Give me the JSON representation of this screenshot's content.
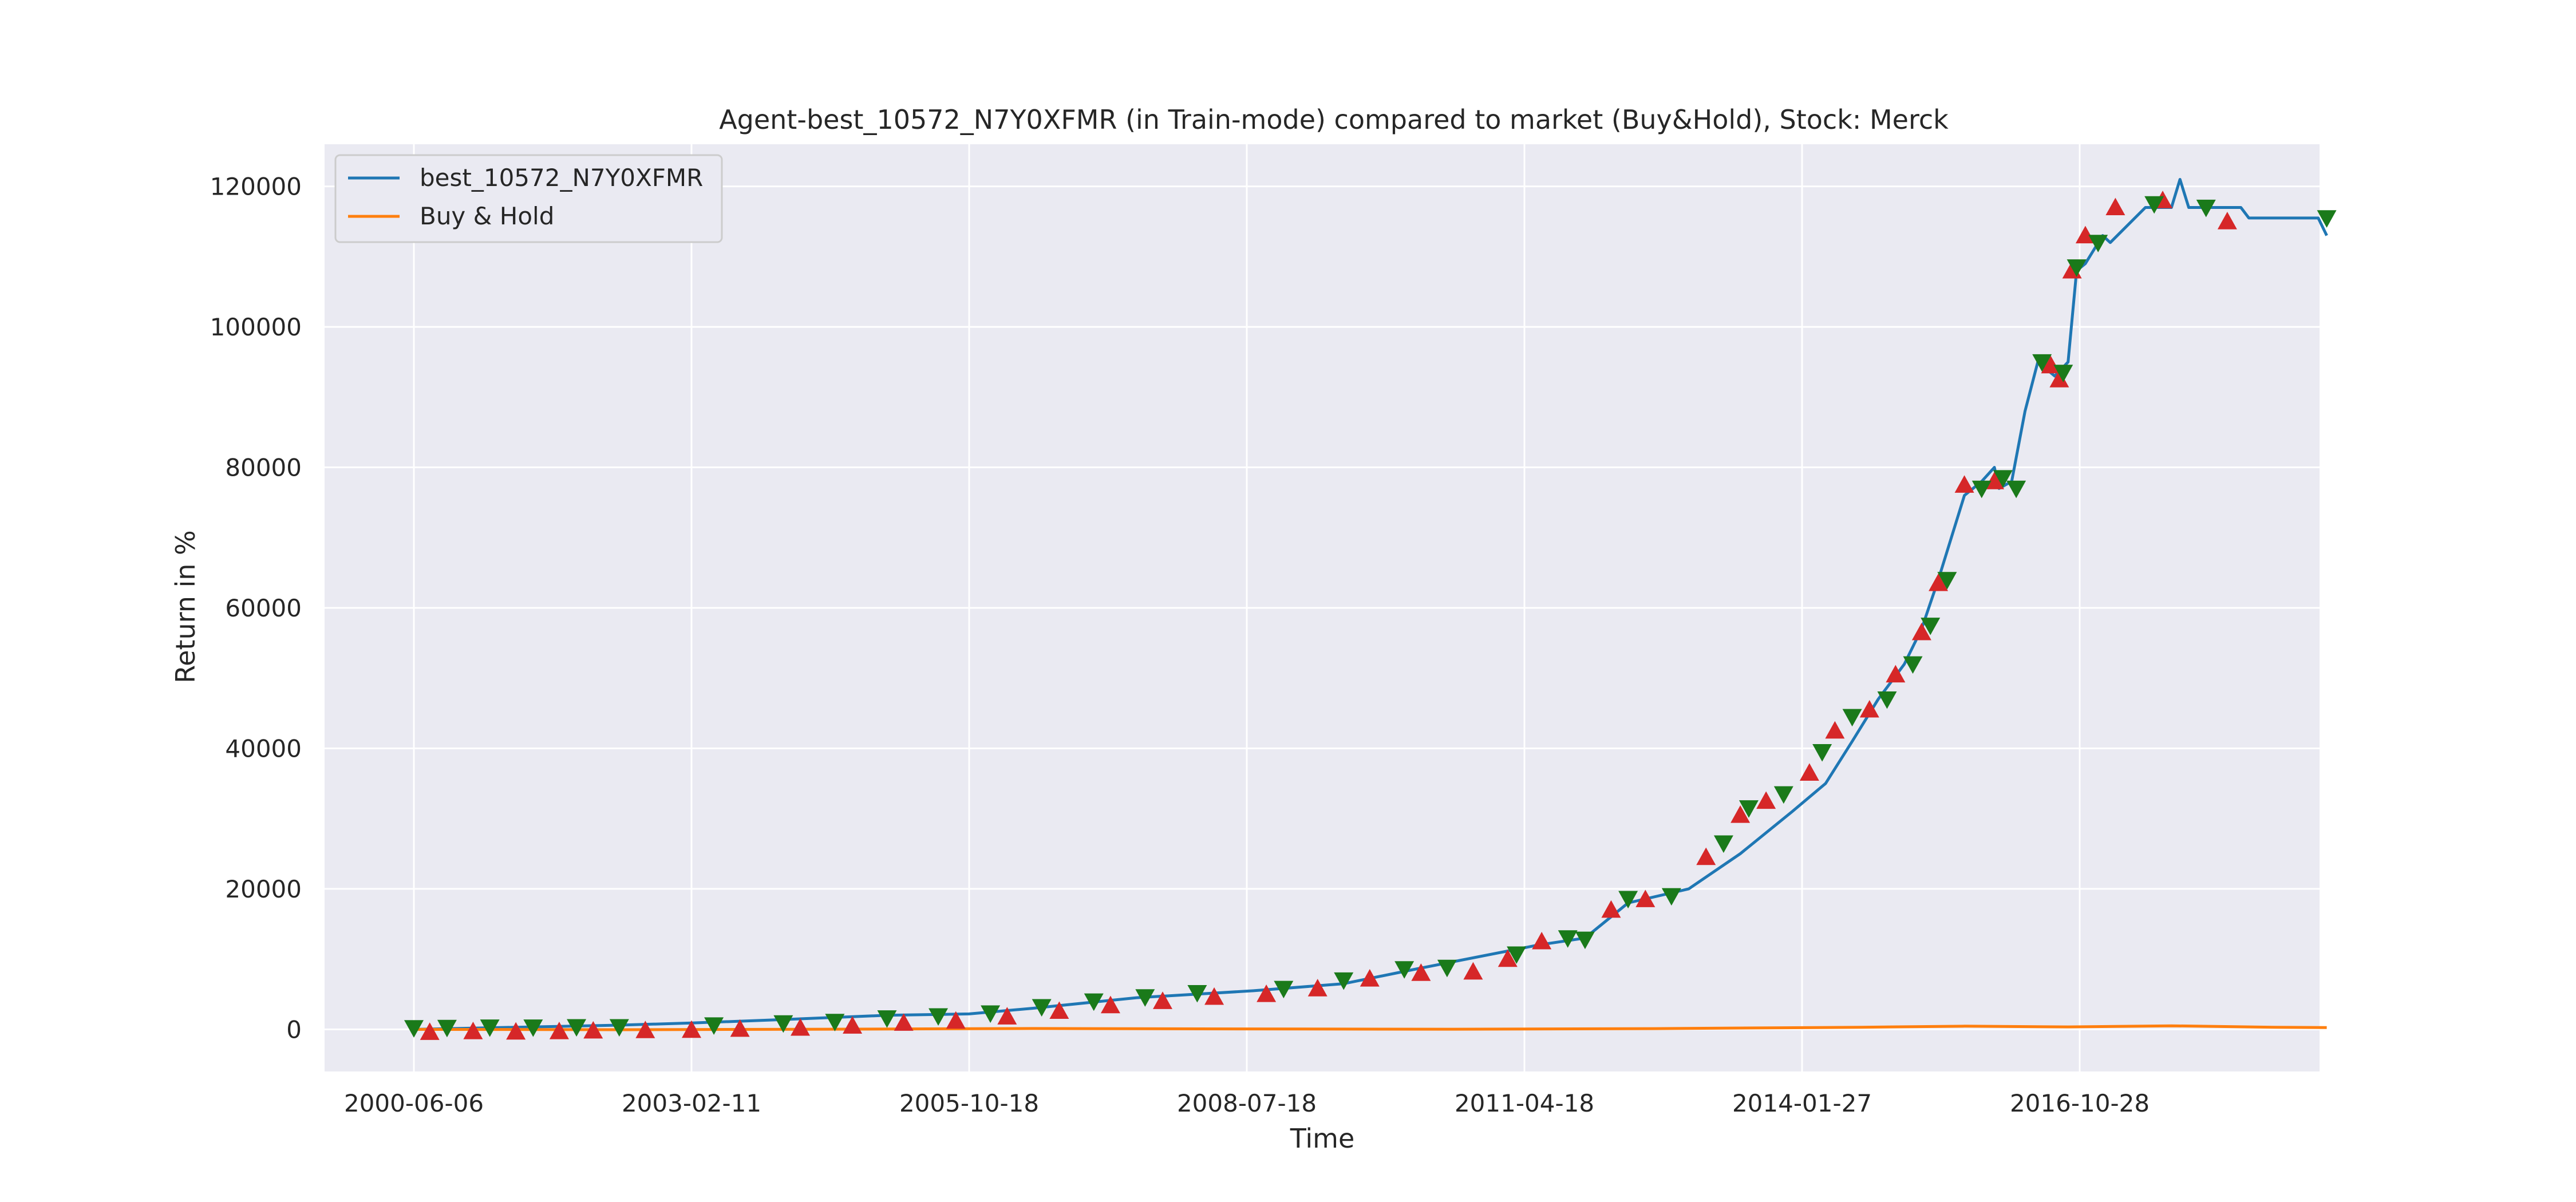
{
  "chart_data": {
    "type": "line",
    "title": "Agent-best_10572_N7Y0XFMR (in Train-mode) compared to market (Buy&Hold), Stock: Merck",
    "xlabel": "Time",
    "ylabel": "Return in %",
    "x_ticks": [
      "2000-06-06",
      "2003-02-11",
      "2005-10-18",
      "2008-07-18",
      "2011-04-18",
      "2014-01-27",
      "2016-10-28"
    ],
    "y_ticks": [
      0,
      20000,
      40000,
      60000,
      80000,
      100000,
      120000
    ],
    "xlim": [
      "2000-06-06",
      "2019-02-01"
    ],
    "ylim": [
      -6000,
      126000
    ],
    "grid": true,
    "legend_position": "top-left",
    "colors": {
      "background": "#eaeaf2",
      "grid": "#ffffff",
      "agent": "#1f77b4",
      "buy_hold": "#ff7f0e",
      "buy_marker": "#d62728",
      "sell_marker": "#1a7a1a"
    },
    "series": [
      {
        "name": "best_10572_N7Y0XFMR",
        "x": [
          "2000-06-06",
          "2001-06-01",
          "2002-06-01",
          "2003-02-11",
          "2004-01-01",
          "2005-01-01",
          "2005-10-18",
          "2006-06-01",
          "2007-06-01",
          "2008-07-18",
          "2009-06-01",
          "2010-02-01",
          "2011-04-18",
          "2011-10-01",
          "2012-03-01",
          "2012-10-01",
          "2013-04-01",
          "2013-10-01",
          "2014-01-27",
          "2014-05-01",
          "2014-08-01",
          "2014-11-01",
          "2015-01-01",
          "2015-03-01",
          "2015-06-01",
          "2015-08-01",
          "2015-09-15",
          "2015-10-01",
          "2015-11-15",
          "2016-01-01",
          "2016-02-15",
          "2016-04-15",
          "2016-06-01",
          "2016-07-01",
          "2016-08-01",
          "2016-10-01",
          "2016-10-28",
          "2017-03-01",
          "2017-06-01",
          "2017-07-01",
          "2017-08-01",
          "2018-01-01",
          "2018-02-01",
          "2018-03-01",
          "2018-07-01",
          "2018-09-01",
          "2018-11-01",
          "2018-12-01"
        ],
        "y": [
          0,
          300,
          600,
          900,
          1400,
          2000,
          2200,
          3000,
          4500,
          5500,
          6500,
          8500,
          12000,
          13000,
          18000,
          20000,
          25000,
          31000,
          35000,
          41000,
          47000,
          52000,
          57000,
          64000,
          76000,
          78000,
          80000,
          77000,
          78000,
          88000,
          95000,
          93000,
          95000,
          108000,
          109000,
          113000,
          112000,
          117000,
          117000,
          121000,
          117000,
          117000,
          117000,
          115500,
          115500,
          115500,
          115500,
          113000
        ]
      },
      {
        "name": "Buy & Hold",
        "x": [
          "2000-06-06",
          "2002-06-01",
          "2004-06-01",
          "2006-06-01",
          "2008-06-01",
          "2010-06-01",
          "2012-06-01",
          "2014-06-01",
          "2015-06-01",
          "2016-06-01",
          "2017-06-01",
          "2018-06-01",
          "2018-12-01"
        ],
        "y": [
          0,
          -50,
          20,
          120,
          60,
          20,
          100,
          300,
          450,
          350,
          500,
          300,
          250
        ]
      }
    ],
    "buy_markers": [
      {
        "x": "2000-08-01",
        "y": -400
      },
      {
        "x": "2001-01-01",
        "y": -300
      },
      {
        "x": "2001-06-01",
        "y": -350
      },
      {
        "x": "2001-11-01",
        "y": -300
      },
      {
        "x": "2002-03-01",
        "y": -200
      },
      {
        "x": "2002-09-01",
        "y": -150
      },
      {
        "x": "2003-02-11",
        "y": -100
      },
      {
        "x": "2003-08-01",
        "y": 50
      },
      {
        "x": "2004-03-01",
        "y": 200
      },
      {
        "x": "2004-09-01",
        "y": 500
      },
      {
        "x": "2005-03-01",
        "y": 900
      },
      {
        "x": "2005-09-01",
        "y": 1200
      },
      {
        "x": "2006-03-01",
        "y": 1800
      },
      {
        "x": "2006-09-01",
        "y": 2600
      },
      {
        "x": "2007-03-01",
        "y": 3400
      },
      {
        "x": "2007-09-01",
        "y": 4000
      },
      {
        "x": "2008-03-01",
        "y": 4600
      },
      {
        "x": "2008-09-01",
        "y": 5000
      },
      {
        "x": "2009-03-01",
        "y": 5800
      },
      {
        "x": "2009-09-01",
        "y": 7200
      },
      {
        "x": "2010-03-01",
        "y": 8000
      },
      {
        "x": "2010-09-01",
        "y": 8200
      },
      {
        "x": "2011-01-01",
        "y": 10000
      },
      {
        "x": "2011-05-01",
        "y": 12500
      },
      {
        "x": "2012-01-01",
        "y": 17000
      },
      {
        "x": "2012-05-01",
        "y": 18500
      },
      {
        "x": "2012-12-01",
        "y": 24500
      },
      {
        "x": "2013-04-01",
        "y": 30500
      },
      {
        "x": "2013-07-01",
        "y": 32500
      },
      {
        "x": "2013-12-01",
        "y": 36500
      },
      {
        "x": "2014-03-01",
        "y": 42500
      },
      {
        "x": "2014-07-01",
        "y": 45500
      },
      {
        "x": "2014-10-01",
        "y": 50500
      },
      {
        "x": "2015-01-01",
        "y": 56500
      },
      {
        "x": "2015-03-01",
        "y": 63500
      },
      {
        "x": "2015-06-01",
        "y": 77500
      },
      {
        "x": "2015-09-15",
        "y": 78000
      },
      {
        "x": "2016-04-01",
        "y": 94500
      },
      {
        "x": "2016-05-01",
        "y": 92500
      },
      {
        "x": "2016-06-15",
        "y": 108000
      },
      {
        "x": "2016-08-01",
        "y": 113000
      },
      {
        "x": "2016-11-15",
        "y": 117000
      },
      {
        "x": "2017-05-01",
        "y": 118000
      },
      {
        "x": "2017-12-15",
        "y": 115000
      }
    ],
    "sell_markers": [
      {
        "x": "2000-06-06",
        "y": 200
      },
      {
        "x": "2000-10-01",
        "y": 250
      },
      {
        "x": "2001-03-01",
        "y": 300
      },
      {
        "x": "2001-08-01",
        "y": 300
      },
      {
        "x": "2002-01-01",
        "y": 350
      },
      {
        "x": "2002-06-01",
        "y": 350
      },
      {
        "x": "2003-05-01",
        "y": 600
      },
      {
        "x": "2004-01-01",
        "y": 900
      },
      {
        "x": "2004-07-01",
        "y": 1100
      },
      {
        "x": "2005-01-01",
        "y": 1600
      },
      {
        "x": "2005-07-01",
        "y": 1900
      },
      {
        "x": "2006-01-01",
        "y": 2300
      },
      {
        "x": "2006-07-01",
        "y": 3200
      },
      {
        "x": "2007-01-01",
        "y": 4000
      },
      {
        "x": "2007-07-01",
        "y": 4600
      },
      {
        "x": "2008-01-01",
        "y": 5200
      },
      {
        "x": "2008-11-01",
        "y": 5800
      },
      {
        "x": "2009-06-01",
        "y": 7000
      },
      {
        "x": "2010-01-01",
        "y": 8600
      },
      {
        "x": "2010-06-01",
        "y": 8800
      },
      {
        "x": "2011-02-01",
        "y": 10700
      },
      {
        "x": "2011-08-01",
        "y": 13000
      },
      {
        "x": "2011-10-01",
        "y": 12800
      },
      {
        "x": "2012-03-01",
        "y": 18600
      },
      {
        "x": "2012-08-01",
        "y": 19000
      },
      {
        "x": "2013-02-01",
        "y": 26500
      },
      {
        "x": "2013-05-01",
        "y": 31500
      },
      {
        "x": "2013-09-01",
        "y": 33500
      },
      {
        "x": "2014-01-15",
        "y": 39500
      },
      {
        "x": "2014-05-01",
        "y": 44500
      },
      {
        "x": "2014-09-01",
        "y": 47000
      },
      {
        "x": "2014-12-01",
        "y": 52000
      },
      {
        "x": "2015-02-01",
        "y": 57500
      },
      {
        "x": "2015-04-01",
        "y": 64000
      },
      {
        "x": "2015-08-01",
        "y": 77000
      },
      {
        "x": "2015-10-15",
        "y": 78500
      },
      {
        "x": "2015-12-01",
        "y": 77000
      },
      {
        "x": "2016-03-01",
        "y": 95000
      },
      {
        "x": "2016-05-15",
        "y": 93500
      },
      {
        "x": "2016-07-01",
        "y": 108500
      },
      {
        "x": "2016-09-15",
        "y": 112000
      },
      {
        "x": "2017-04-01",
        "y": 117500
      },
      {
        "x": "2017-10-01",
        "y": 117000
      },
      {
        "x": "2018-12-01",
        "y": 115500
      }
    ]
  }
}
